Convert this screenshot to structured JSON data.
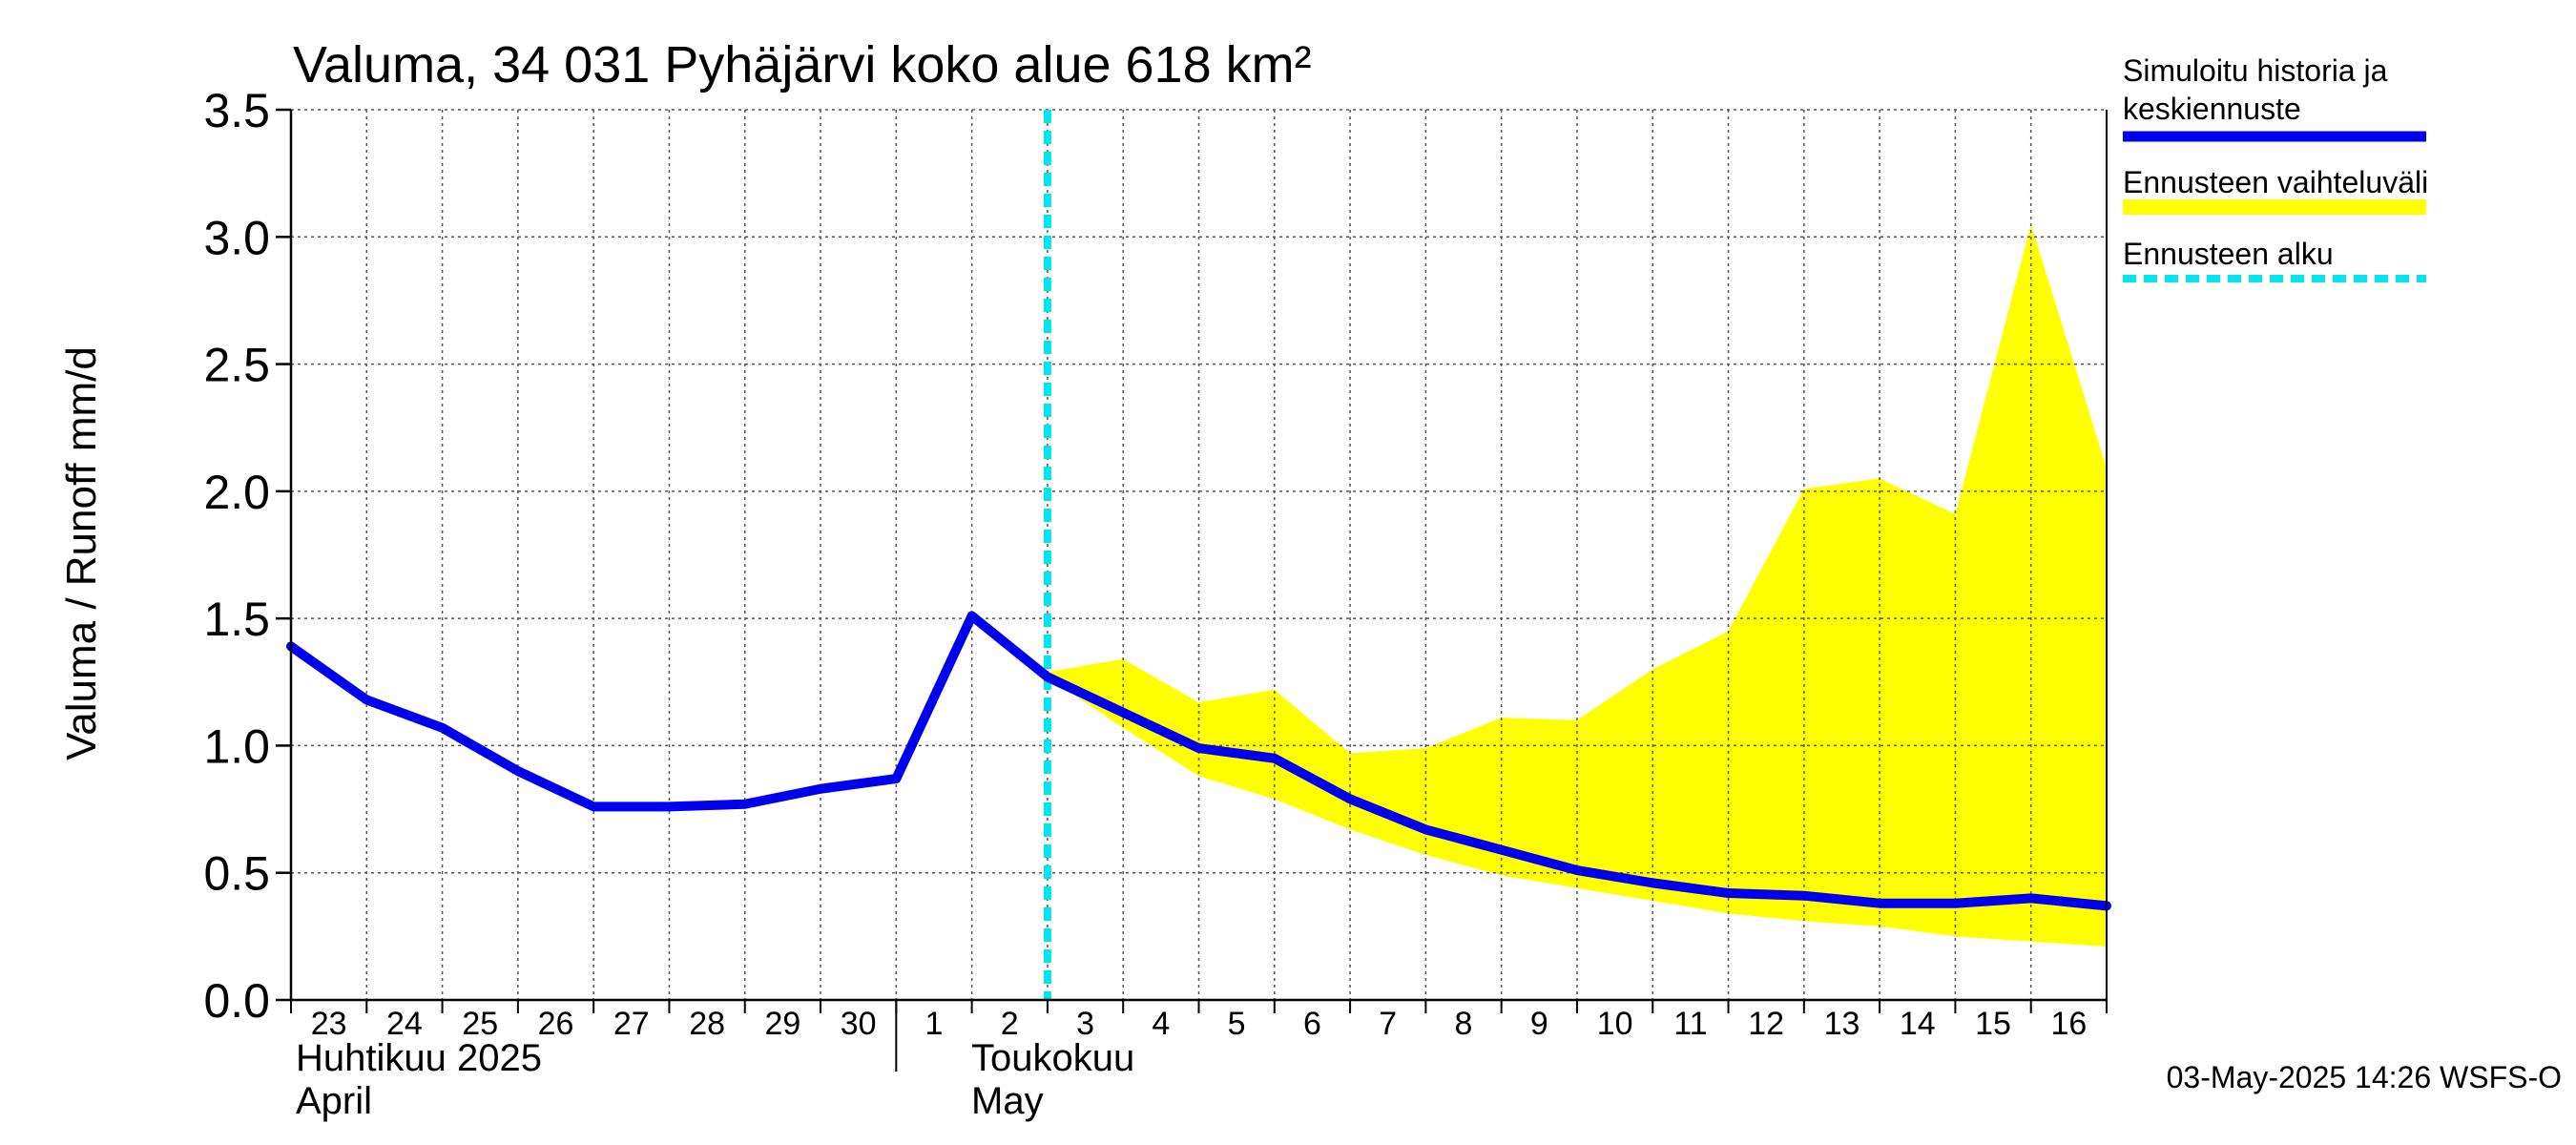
{
  "chart_data": {
    "type": "line",
    "title": "Valuma, 34 031 Pyhäjärvi koko alue 618 km²",
    "ylabel": "Valuma / Runoff     mm/d",
    "ylim": [
      0,
      3.5
    ],
    "yticks": [
      "0.0",
      "0.5",
      "1.0",
      "1.5",
      "2.0",
      "2.5",
      "3.0",
      "3.5"
    ],
    "x_day_labels": [
      "23",
      "24",
      "25",
      "26",
      "27",
      "28",
      "29",
      "30",
      "1",
      "2",
      "3",
      "4",
      "5",
      "6",
      "7",
      "8",
      "9",
      "10",
      "11",
      "12",
      "13",
      "14",
      "15",
      "16"
    ],
    "month_labels": {
      "april_fi": "Huhtikuu  2025",
      "april_en": "April",
      "may_fi": "Toukokuu",
      "may_en": "May"
    },
    "forecast_start_day_index": 10,
    "series": [
      {
        "name": "Simuloitu historia ja keskiennuste",
        "color": "#0000ee",
        "x": [
          0,
          1,
          2,
          3,
          4,
          5,
          6,
          7,
          8,
          9,
          10,
          11,
          12,
          13,
          14,
          15,
          16,
          17,
          18,
          19,
          20,
          21,
          22,
          23,
          24
        ],
        "values": [
          1.39,
          1.18,
          1.07,
          0.9,
          0.76,
          0.76,
          0.77,
          0.83,
          0.87,
          1.51,
          1.27,
          1.13,
          0.99,
          0.95,
          0.79,
          0.67,
          0.59,
          0.51,
          0.46,
          0.42,
          0.41,
          0.38,
          0.38,
          0.4,
          0.37
        ]
      }
    ],
    "range_band": {
      "name": "Ennusteen vaihteluväli",
      "color": "#ffff00",
      "x": [
        10,
        11,
        12,
        13,
        14,
        15,
        16,
        17,
        18,
        19,
        20,
        21,
        22,
        23,
        24
      ],
      "upper": [
        1.29,
        1.34,
        1.17,
        1.22,
        0.97,
        0.99,
        1.11,
        1.1,
        1.3,
        1.45,
        2.01,
        2.05,
        1.91,
        3.05,
        2.09
      ],
      "lower": [
        1.27,
        1.07,
        0.88,
        0.79,
        0.67,
        0.57,
        0.49,
        0.44,
        0.39,
        0.34,
        0.31,
        0.29,
        0.25,
        0.23,
        0.21
      ]
    },
    "legend": [
      {
        "label_line1": "Simuloitu historia ja",
        "label_line2": "keskiennuste",
        "style": "line",
        "color": "#0000ee"
      },
      {
        "label_line1": "Ennusteen vaihteluväli",
        "label_line2": "",
        "style": "band",
        "color": "#ffff00"
      },
      {
        "label_line1": "Ennusteen alku",
        "label_line2": "",
        "style": "dashed",
        "color": "#00e5ee"
      }
    ],
    "timestamp": "03-May-2025 14:26 WSFS-O"
  }
}
